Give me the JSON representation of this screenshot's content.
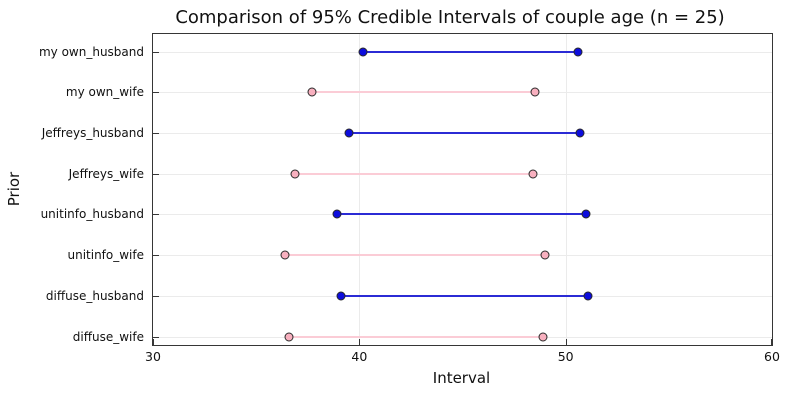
{
  "chart_data": {
    "type": "scatter",
    "subtype": "interval-dot-plot",
    "title": "Comparison of 95% Credible Intervals of couple age (n = 25)",
    "xlabel": "Interval",
    "ylabel": "Prior",
    "xlim": [
      30,
      60
    ],
    "xticks": [
      30,
      40,
      50,
      60
    ],
    "grid": true,
    "legend": "none",
    "categories": [
      "my own_husband",
      "my own_wife",
      "Jeffreys_husband",
      "Jeffreys_wife",
      "unitinfo_husband",
      "unitinfo_wife",
      "diffuse_husband",
      "diffuse_wife"
    ],
    "intervals": [
      {
        "prior": "my own_husband",
        "group": "husband",
        "low": 40.2,
        "high": 50.6
      },
      {
        "prior": "my own_wife",
        "group": "wife",
        "low": 37.7,
        "high": 48.5
      },
      {
        "prior": "Jeffreys_husband",
        "group": "husband",
        "low": 39.5,
        "high": 50.7
      },
      {
        "prior": "Jeffreys_wife",
        "group": "wife",
        "low": 36.9,
        "high": 48.4
      },
      {
        "prior": "unitinfo_husband",
        "group": "husband",
        "low": 38.9,
        "high": 51.0
      },
      {
        "prior": "unitinfo_wife",
        "group": "wife",
        "low": 36.4,
        "high": 49.0
      },
      {
        "prior": "diffuse_husband",
        "group": "husband",
        "low": 39.1,
        "high": 51.1
      },
      {
        "prior": "diffuse_wife",
        "group": "wife",
        "low": 36.6,
        "high": 48.9
      }
    ],
    "colors": {
      "husband_line": "#2b2bd5",
      "husband_fill": "#0d0ddd",
      "wife_line": "#fbccd6",
      "wife_fill": "#f8b0bf",
      "marker_stroke": "#2a2a2a",
      "grid": "#ebebeb",
      "frame": "#363636",
      "text": "#111111"
    }
  }
}
